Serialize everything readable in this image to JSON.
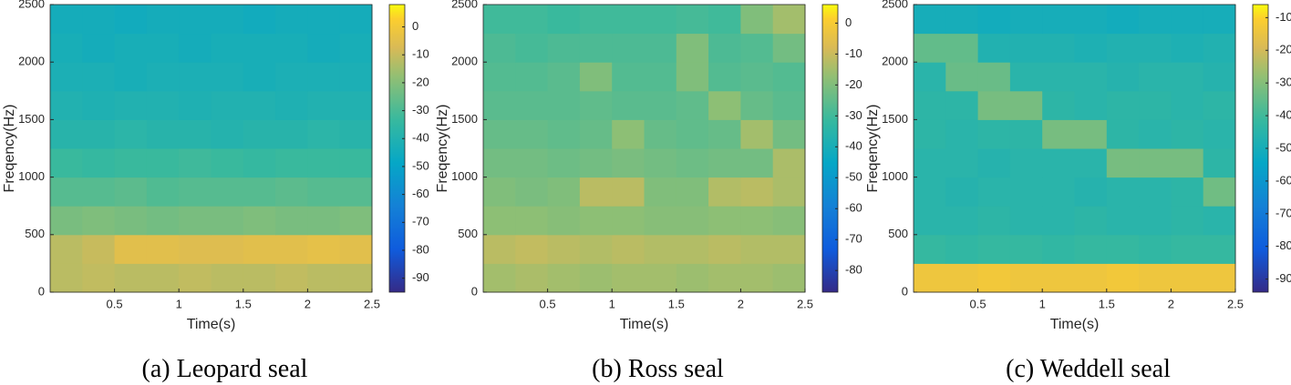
{
  "chart_data": [
    {
      "type": "heatmap",
      "caption": "(a) Leopard seal",
      "xlabel": "Time(s)",
      "ylabel": "Freqency(Hz)",
      "xlim": [
        0,
        2.5
      ],
      "xticks": [
        0.5,
        1,
        1.5,
        2,
        2.5
      ],
      "ylim": [
        0,
        2500
      ],
      "yticks": [
        0,
        500,
        1000,
        1500,
        2000,
        2500
      ],
      "colormap": "parula",
      "zlim": [
        -95,
        8
      ],
      "zticks": [
        -90,
        -80,
        -70,
        -60,
        -50,
        -40,
        -30,
        -20,
        -10,
        0
      ],
      "z": [
        [
          -12,
          -11,
          -12,
          -12,
          -11,
          -12,
          -12,
          -11,
          -12,
          -12
        ],
        [
          -12,
          -10,
          -5,
          -5,
          -6,
          -6,
          -5,
          -5,
          -4,
          -5
        ],
        [
          -22,
          -21,
          -22,
          -23,
          -22,
          -22,
          -21,
          -22,
          -22,
          -21
        ],
        [
          -28,
          -28,
          -27,
          -29,
          -28,
          -28,
          -28,
          -27,
          -28,
          -28
        ],
        [
          -33,
          -34,
          -33,
          -33,
          -32,
          -33,
          -34,
          -33,
          -33,
          -33
        ],
        [
          -38,
          -38,
          -37,
          -38,
          -38,
          -39,
          -38,
          -38,
          -37,
          -38
        ],
        [
          -40,
          -41,
          -40,
          -40,
          -41,
          -40,
          -40,
          -41,
          -40,
          -40
        ],
        [
          -42,
          -42,
          -43,
          -42,
          -42,
          -42,
          -43,
          -42,
          -42,
          -42
        ],
        [
          -43,
          -44,
          -43,
          -43,
          -44,
          -43,
          -43,
          -43,
          -44,
          -43
        ],
        [
          -44,
          -44,
          -45,
          -44,
          -44,
          -44,
          -45,
          -44,
          -44,
          -44
        ]
      ]
    },
    {
      "type": "heatmap",
      "caption": "(b) Ross seal",
      "xlabel": "Time(s)",
      "ylabel": "Freqency(Hz)",
      "xlim": [
        0,
        2.5
      ],
      "xticks": [
        0.5,
        1,
        1.5,
        2,
        2.5
      ],
      "ylim": [
        0,
        2500
      ],
      "yticks": [
        0,
        500,
        1000,
        1500,
        2000,
        2500
      ],
      "colormap": "parula",
      "zlim": [
        -87,
        6
      ],
      "zticks": [
        -80,
        -70,
        -60,
        -50,
        -40,
        -30,
        -20,
        -10,
        0
      ],
      "z": [
        [
          -15,
          -14,
          -15,
          -16,
          -15,
          -15,
          -16,
          -15,
          -15,
          -16
        ],
        [
          -12,
          -11,
          -12,
          -13,
          -12,
          -13,
          -13,
          -12,
          -13,
          -13
        ],
        [
          -18,
          -18,
          -19,
          -18,
          -18,
          -19,
          -19,
          -18,
          -18,
          -19
        ],
        [
          -20,
          -21,
          -20,
          -12,
          -12,
          -20,
          -20,
          -13,
          -12,
          -14
        ],
        [
          -22,
          -22,
          -23,
          -22,
          -21,
          -22,
          -23,
          -22,
          -22,
          -14
        ],
        [
          -24,
          -24,
          -25,
          -24,
          -18,
          -24,
          -25,
          -24,
          -15,
          -22
        ],
        [
          -26,
          -26,
          -26,
          -25,
          -26,
          -26,
          -25,
          -18,
          -24,
          -26
        ],
        [
          -27,
          -27,
          -26,
          -20,
          -27,
          -27,
          -20,
          -27,
          -26,
          -27
        ],
        [
          -28,
          -29,
          -28,
          -28,
          -28,
          -28,
          -20,
          -28,
          -27,
          -22
        ],
        [
          -30,
          -30,
          -31,
          -30,
          -30,
          -30,
          -29,
          -30,
          -20,
          -15
        ]
      ]
    },
    {
      "type": "heatmap",
      "caption": "(c) Weddell seal",
      "xlabel": "Time(s)",
      "ylabel": "Freqency(Hz)",
      "xlim": [
        0,
        2.5
      ],
      "xticks": [
        0.5,
        1,
        1.5,
        2,
        2.5
      ],
      "ylim": [
        0,
        2500
      ],
      "yticks": [
        0,
        500,
        1000,
        1500,
        2000,
        2500
      ],
      "colormap": "parula",
      "zlim": [
        -94,
        -6
      ],
      "zticks": [
        -90,
        -80,
        -70,
        -60,
        -50,
        -40,
        -30,
        -20,
        -10
      ],
      "z": [
        [
          -14,
          -14,
          -13,
          -14,
          -14,
          -14,
          -13,
          -14,
          -14,
          -14
        ],
        [
          -42,
          -43,
          -42,
          -42,
          -43,
          -42,
          -42,
          -43,
          -42,
          -42
        ],
        [
          -45,
          -45,
          -44,
          -45,
          -45,
          -44,
          -45,
          -45,
          -44,
          -45
        ],
        [
          -45,
          -46,
          -45,
          -45,
          -45,
          -46,
          -45,
          -45,
          -44,
          -33
        ],
        [
          -45,
          -45,
          -46,
          -45,
          -45,
          -45,
          -32,
          -32,
          -32,
          -44
        ],
        [
          -44,
          -45,
          -44,
          -44,
          -32,
          -32,
          -44,
          -45,
          -44,
          -45
        ],
        [
          -44,
          -44,
          -32,
          -32,
          -44,
          -45,
          -44,
          -44,
          -45,
          -44
        ],
        [
          -45,
          -34,
          -34,
          -45,
          -45,
          -45,
          -46,
          -45,
          -45,
          -46
        ],
        [
          -35,
          -35,
          -47,
          -47,
          -47,
          -48,
          -47,
          -47,
          -48,
          -47
        ],
        [
          -50,
          -50,
          -51,
          -50,
          -50,
          -50,
          -51,
          -50,
          -50,
          -50
        ]
      ]
    }
  ]
}
